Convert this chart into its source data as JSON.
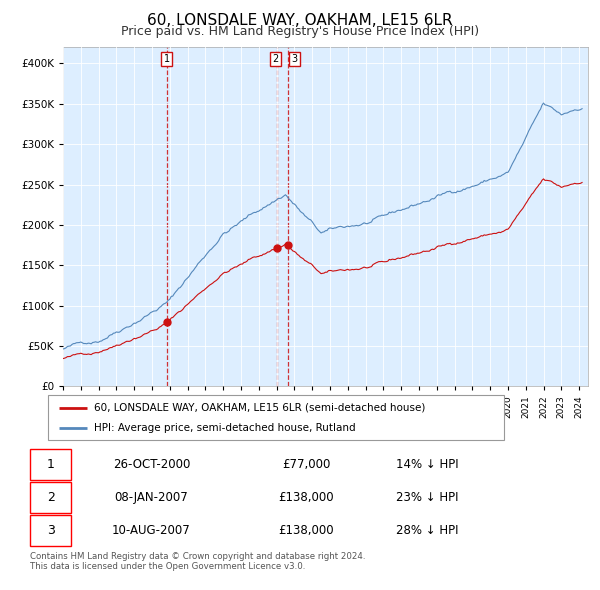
{
  "title": "60, LONSDALE WAY, OAKHAM, LE15 6LR",
  "subtitle": "Price paid vs. HM Land Registry's House Price Index (HPI)",
  "title_fontsize": 11,
  "subtitle_fontsize": 9,
  "background_color": "#ffffff",
  "plot_bg_color": "#ddeeff",
  "grid_color": "#ffffff",
  "hpi_color": "#5588bb",
  "price_color": "#cc1111",
  "ylim": [
    0,
    420000
  ],
  "yticks": [
    0,
    50000,
    100000,
    150000,
    200000,
    250000,
    300000,
    350000,
    400000
  ],
  "legend_label_price": "60, LONSDALE WAY, OAKHAM, LE15 6LR (semi-detached house)",
  "legend_label_hpi": "HPI: Average price, semi-detached house, Rutland",
  "transactions": [
    {
      "date": "26-OCT-2000",
      "price": 77000,
      "label": "1",
      "hpi_diff": "14% ↓ HPI",
      "year": 2000.82
    },
    {
      "date": "08-JAN-2007",
      "price": 138000,
      "label": "2",
      "hpi_diff": "23% ↓ HPI",
      "year": 2007.03
    },
    {
      "date": "10-AUG-2007",
      "price": 138000,
      "label": "3",
      "hpi_diff": "28% ↓ HPI",
      "year": 2007.62
    }
  ],
  "footer": "Contains HM Land Registry data © Crown copyright and database right 2024.\nThis data is licensed under the Open Government Licence v3.0."
}
